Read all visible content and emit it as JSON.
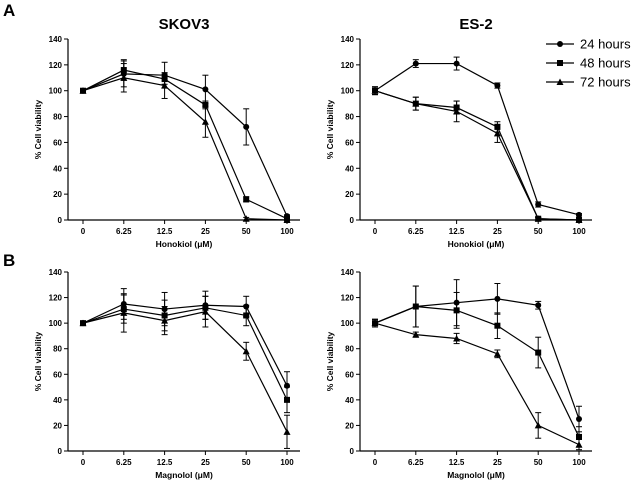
{
  "panel_labels": [
    "A",
    "B"
  ],
  "legend": {
    "placement": "top-right",
    "entries": [
      {
        "label": "24 hours",
        "marker": "circle"
      },
      {
        "label": "48 hours",
        "marker": "square"
      },
      {
        "label": "72 hours",
        "marker": "triangle"
      }
    ]
  },
  "chart_data": [
    {
      "type": "line",
      "title": "SKOV3",
      "xlabel": "Honokiol (μM)",
      "ylabel": "% Cell viability",
      "categories": [
        "0",
        "6.25",
        "12.5",
        "25",
        "50",
        "100"
      ],
      "ylim": [
        0,
        140
      ],
      "yticks": [
        0,
        20,
        40,
        60,
        80,
        100,
        120,
        140
      ],
      "grid": false,
      "series": [
        {
          "name": "24 hours",
          "values": [
            100,
            113,
            112,
            101,
            72,
            3
          ],
          "errors": [
            0,
            10,
            10,
            11,
            14,
            1
          ]
        },
        {
          "name": "48 hours",
          "values": [
            100,
            116,
            109,
            89,
            16,
            1
          ],
          "errors": [
            0,
            8,
            4,
            3,
            2,
            1
          ]
        },
        {
          "name": "72 hours",
          "values": [
            100,
            110,
            104,
            76,
            1,
            0
          ],
          "errors": [
            0,
            11,
            10,
            12,
            1,
            0
          ]
        }
      ]
    },
    {
      "type": "line",
      "title": "ES-2",
      "xlabel": "Honokiol (μM)",
      "ylabel": "% Cell viability",
      "categories": [
        "0",
        "6.25",
        "12.5",
        "25",
        "50",
        "100"
      ],
      "ylim": [
        0,
        140
      ],
      "yticks": [
        0,
        20,
        40,
        60,
        80,
        100,
        120,
        140
      ],
      "grid": false,
      "series": [
        {
          "name": "24 hours",
          "values": [
            100,
            121,
            121,
            104,
            12,
            4
          ],
          "errors": [
            3,
            3,
            5,
            2,
            2,
            1
          ]
        },
        {
          "name": "48 hours",
          "values": [
            100,
            90,
            87,
            72,
            1,
            0
          ],
          "errors": [
            3,
            5,
            5,
            4,
            1,
            0
          ]
        },
        {
          "name": "72 hours",
          "values": [
            100,
            90,
            84,
            67,
            1,
            0
          ],
          "errors": [
            3,
            5,
            8,
            7,
            1,
            0
          ]
        }
      ]
    },
    {
      "type": "line",
      "title": "",
      "xlabel": "Magnolol (μM)",
      "ylabel": "% Cell viability",
      "categories": [
        "0",
        "6.25",
        "12.5",
        "25",
        "50",
        "100"
      ],
      "ylim": [
        0,
        140
      ],
      "yticks": [
        0,
        20,
        40,
        60,
        80,
        100,
        120,
        140
      ],
      "grid": false,
      "series": [
        {
          "name": "24 hours",
          "values": [
            100,
            115,
            111,
            114,
            113,
            51
          ],
          "errors": [
            0,
            12,
            13,
            11,
            8,
            11
          ]
        },
        {
          "name": "48 hours",
          "values": [
            100,
            111,
            106,
            112,
            106,
            40
          ],
          "errors": [
            0,
            11,
            12,
            9,
            8,
            10
          ]
        },
        {
          "name": "72 hours",
          "values": [
            100,
            108,
            102,
            109,
            78,
            15
          ],
          "errors": [
            0,
            15,
            11,
            12,
            7,
            13
          ]
        }
      ]
    },
    {
      "type": "line",
      "title": "",
      "xlabel": "Magnolol (μM)",
      "ylabel": "% Cell viability",
      "categories": [
        "0",
        "6.25",
        "12.5",
        "25",
        "50",
        "100"
      ],
      "ylim": [
        0,
        140
      ],
      "yticks": [
        0,
        20,
        40,
        60,
        80,
        100,
        120,
        140
      ],
      "grid": false,
      "series": [
        {
          "name": "24 hours",
          "values": [
            100,
            113,
            116,
            119,
            114,
            25
          ],
          "errors": [
            3,
            16,
            18,
            12,
            3,
            10
          ]
        },
        {
          "name": "48 hours",
          "values": [
            100,
            113,
            110,
            98,
            77,
            11
          ],
          "errors": [
            3,
            16,
            14,
            10,
            12,
            8
          ]
        },
        {
          "name": "72 hours",
          "values": [
            100,
            91,
            88,
            76,
            20,
            5
          ],
          "errors": [
            3,
            2,
            4,
            3,
            10,
            4
          ]
        }
      ]
    }
  ]
}
